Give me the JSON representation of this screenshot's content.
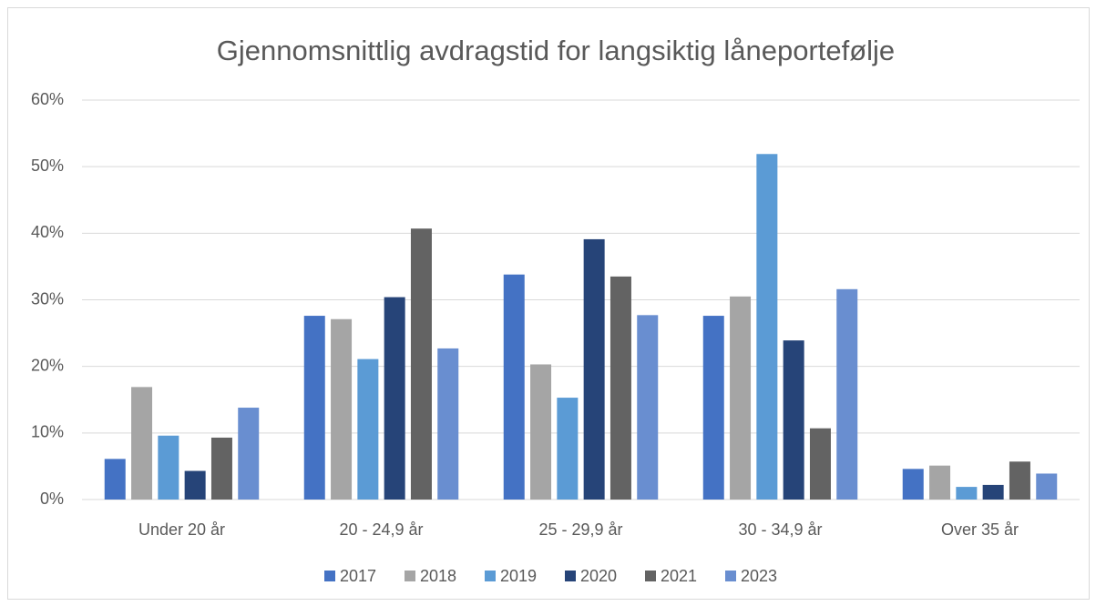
{
  "chart_data": {
    "type": "bar",
    "title": "Gjennomsnittlig avdragstid for langsiktig låneportefølje",
    "categories": [
      "Under 20 år",
      "20 - 24,9 år",
      "25 - 29,9 år",
      "30 - 34,9 år",
      "Over 35 år"
    ],
    "series": [
      {
        "name": "2017",
        "color": "#4472c4",
        "values": [
          6.1,
          27.6,
          33.8,
          27.6,
          4.6
        ]
      },
      {
        "name": "2018",
        "color": "#a5a5a5",
        "values": [
          16.9,
          27.1,
          20.3,
          30.5,
          5.1
        ]
      },
      {
        "name": "2019",
        "color": "#5b9bd5",
        "values": [
          9.6,
          21.1,
          15.3,
          51.9,
          1.9
        ]
      },
      {
        "name": "2020",
        "color": "#264478",
        "values": [
          4.3,
          30.4,
          39.1,
          23.9,
          2.2
        ]
      },
      {
        "name": "2021",
        "color": "#636363",
        "values": [
          9.3,
          40.7,
          33.5,
          10.7,
          5.7
        ]
      },
      {
        "name": "2023",
        "color": "#698ed0",
        "values": [
          13.8,
          22.7,
          27.7,
          31.6,
          3.9
        ]
      }
    ],
    "ylim": [
      0,
      60
    ],
    "yticks": [
      {
        "value": 0,
        "label": "0%"
      },
      {
        "value": 10,
        "label": "10%"
      },
      {
        "value": 20,
        "label": "20%"
      },
      {
        "value": 30,
        "label": "30%"
      },
      {
        "value": 40,
        "label": "40%"
      },
      {
        "value": 50,
        "label": "50%"
      },
      {
        "value": 60,
        "label": "60%"
      }
    ],
    "grid": true,
    "legend": "bottom"
  }
}
